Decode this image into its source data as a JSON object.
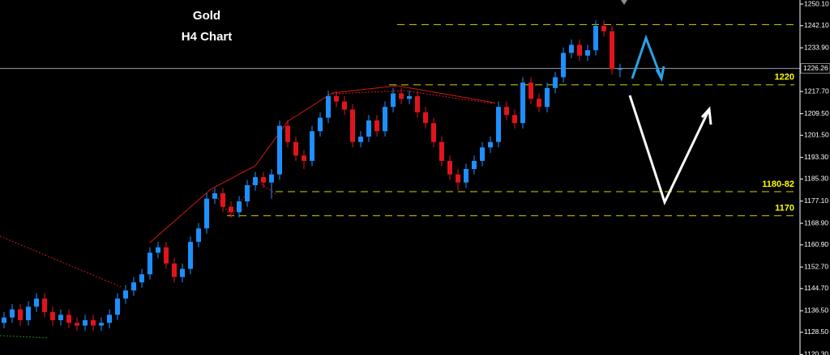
{
  "chart_data": {
    "type": "candlestick",
    "title": "Gold",
    "subtitle": "H4 Chart",
    "up_color": "#1e8fff",
    "down_color": "#e0141e",
    "open": [
      1132,
      1134,
      1137,
      1133,
      1138,
      1141,
      1136,
      1133,
      1135,
      1132,
      1131,
      1133,
      1131,
      1132,
      1135,
      1141,
      1144,
      1147,
      1150,
      1158,
      1160,
      1154,
      1149,
      1152,
      1162,
      1167,
      1178,
      1180,
      1175,
      1173,
      1177,
      1183,
      1186,
      1184,
      1187,
      1205,
      1199,
      1194,
      1192,
      1203,
      1208,
      1216,
      1214,
      1211,
      1199,
      1201,
      1207,
      1203,
      1212,
      1217,
      1215,
      1216,
      1210,
      1206,
      1199,
      1192,
      1187,
      1184,
      1189,
      1192,
      1197,
      1199,
      1212,
      1209,
      1206,
      1221,
      1215,
      1212,
      1219,
      1223,
      1232,
      1235,
      1231,
      1233,
      1242,
      1240,
      1226
    ],
    "high": [
      1136,
      1139,
      1139,
      1140,
      1143,
      1143,
      1138,
      1137,
      1137,
      1134,
      1135,
      1135,
      1134,
      1137,
      1143,
      1146,
      1149,
      1152,
      1160,
      1162,
      1162,
      1156,
      1154,
      1164,
      1169,
      1180,
      1182,
      1182,
      1177,
      1179,
      1185,
      1188,
      1188,
      1189,
      1207,
      1207,
      1201,
      1196,
      1205,
      1210,
      1218,
      1218,
      1216,
      1213,
      1203,
      1209,
      1209,
      1214,
      1219,
      1219,
      1218,
      1218,
      1212,
      1208,
      1201,
      1194,
      1189,
      1191,
      1194,
      1199,
      1201,
      1214,
      1214,
      1211,
      1223,
      1223,
      1217,
      1221,
      1225,
      1234,
      1237,
      1237,
      1235,
      1244,
      1244,
      1242,
      1228
    ],
    "low": [
      1130,
      1132,
      1131,
      1131,
      1136,
      1134,
      1131,
      1131,
      1130,
      1129,
      1129,
      1129,
      1129,
      1130,
      1133,
      1139,
      1142,
      1145,
      1148,
      1156,
      1152,
      1147,
      1147,
      1150,
      1160,
      1165,
      1176,
      1173,
      1171,
      1171,
      1175,
      1181,
      1182,
      1178,
      1185,
      1197,
      1192,
      1189,
      1190,
      1201,
      1206,
      1212,
      1209,
      1197,
      1197,
      1199,
      1201,
      1201,
      1210,
      1213,
      1213,
      1208,
      1204,
      1197,
      1190,
      1185,
      1181,
      1182,
      1187,
      1190,
      1195,
      1197,
      1207,
      1204,
      1204,
      1213,
      1210,
      1210,
      1217,
      1221,
      1230,
      1229,
      1229,
      1231,
      1238,
      1224,
      1223
    ],
    "close": [
      1134,
      1137,
      1133,
      1138,
      1141,
      1136,
      1133,
      1135,
      1132,
      1131,
      1133,
      1131,
      1132,
      1135,
      1141,
      1144,
      1147,
      1150,
      1158,
      1160,
      1154,
      1149,
      1152,
      1162,
      1167,
      1178,
      1180,
      1175,
      1173,
      1177,
      1183,
      1186,
      1184,
      1187,
      1205,
      1199,
      1194,
      1192,
      1203,
      1208,
      1216,
      1214,
      1211,
      1199,
      1201,
      1207,
      1203,
      1212,
      1217,
      1215,
      1216,
      1210,
      1206,
      1199,
      1192,
      1187,
      1184,
      1189,
      1192,
      1197,
      1199,
      1212,
      1209,
      1206,
      1221,
      1215,
      1212,
      1219,
      1223,
      1232,
      1235,
      1231,
      1233,
      1242,
      1240,
      1226,
      1226
    ],
    "ylim": [
      1120.1,
      1251.6
    ],
    "yticks": [
      {
        "value": 1250.1,
        "label": "1250.10"
      },
      {
        "value": 1242.1,
        "label": "1242.10"
      },
      {
        "value": 1233.9,
        "label": "1233.90"
      },
      {
        "value": 1217.7,
        "label": "1217.70"
      },
      {
        "value": 1209.5,
        "label": "1209.50"
      },
      {
        "value": 1201.5,
        "label": "1201.50"
      },
      {
        "value": 1193.3,
        "label": "1193.30"
      },
      {
        "value": 1185.3,
        "label": "1185.30"
      },
      {
        "value": 1177.1,
        "label": "1177.10"
      },
      {
        "value": 1168.9,
        "label": "1168.90"
      },
      {
        "value": 1160.9,
        "label": "1160.90"
      },
      {
        "value": 1152.7,
        "label": "1152.70"
      },
      {
        "value": 1144.7,
        "label": "1144.70"
      },
      {
        "value": 1136.5,
        "label": "1136.50"
      },
      {
        "value": 1128.5,
        "label": "1128.50"
      },
      {
        "value": 1120.3,
        "label": "1120.30"
      }
    ],
    "last_price": 1226.26,
    "levels": [
      1242.5,
      1220.2,
      1180.6,
      1171.7
    ],
    "level_labels": [
      null,
      "1220",
      "1180-82",
      "1170"
    ],
    "level_color": "#d4d400"
  }
}
